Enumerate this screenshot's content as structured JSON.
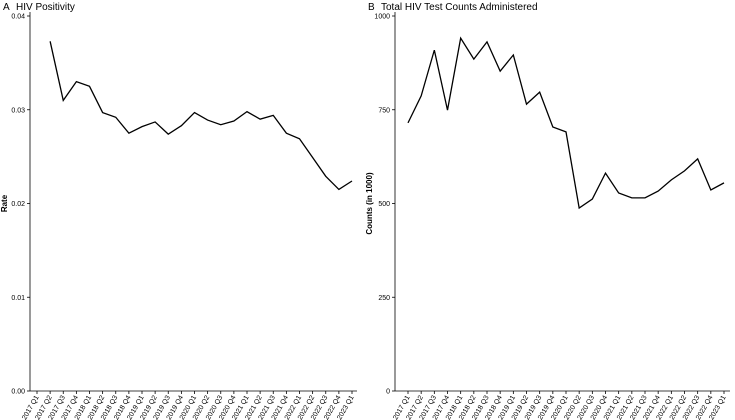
{
  "chart_data": [
    {
      "type": "line",
      "tag": "A",
      "title": "HIV Positivity",
      "ylabel": "Rate",
      "categories": [
        "2017 Q1",
        "2017 Q2",
        "2017 Q3",
        "2017 Q4",
        "2018 Q1",
        "2018 Q2",
        "2018 Q3",
        "2018 Q4",
        "2019 Q1",
        "2019 Q2",
        "2019 Q3",
        "2019 Q4",
        "2020 Q1",
        "2020 Q2",
        "2020 Q3",
        "2020 Q4",
        "2021 Q1",
        "2021 Q2",
        "2021 Q3",
        "2021 Q4",
        "2022 Q1",
        "2022 Q2",
        "2022 Q3",
        "2022 Q4",
        "2023 Q1"
      ],
      "values": [
        null,
        0.0373,
        0.031,
        0.033,
        0.0325,
        0.0297,
        0.0292,
        0.0275,
        0.0282,
        0.0287,
        0.0274,
        0.0283,
        0.0297,
        0.0289,
        0.0284,
        0.0288,
        0.0298,
        0.029,
        0.0294,
        0.0275,
        0.0269,
        0.0249,
        0.0229,
        0.0215,
        0.0224
      ],
      "color": "#000000",
      "ylim": [
        0,
        0.04
      ],
      "yticks": [
        {
          "value": 0,
          "label": "0.00"
        },
        0.01,
        0.02,
        0.03,
        0.04
      ]
    },
    {
      "type": "line",
      "tag": "B",
      "title": "Total HIV Test Counts Administered",
      "ylabel": "Counts (in 1000)",
      "categories": [
        "2017 Q1",
        "2017 Q2",
        "2017 Q3",
        "2017 Q4",
        "2018 Q1",
        "2018 Q2",
        "2018 Q3",
        "2018 Q4",
        "2019 Q1",
        "2019 Q2",
        "2019 Q3",
        "2019 Q4",
        "2020 Q1",
        "2020 Q2",
        "2020 Q3",
        "2020 Q4",
        "2021 Q1",
        "2021 Q2",
        "2021 Q3",
        "2021 Q4",
        "2022 Q1",
        "2022 Q2",
        "2022 Q3",
        "2022 Q4",
        "2023 Q1"
      ],
      "values": [
        715,
        787,
        909,
        749,
        941,
        885,
        931,
        853,
        896,
        765,
        797,
        704,
        691,
        488,
        512,
        581,
        528,
        515,
        515,
        533,
        563,
        587,
        619,
        536,
        555
      ],
      "color": "#000000",
      "ylim": [
        0,
        1000
      ],
      "yticks": [
        0,
        250,
        500,
        750,
        1000
      ]
    }
  ]
}
